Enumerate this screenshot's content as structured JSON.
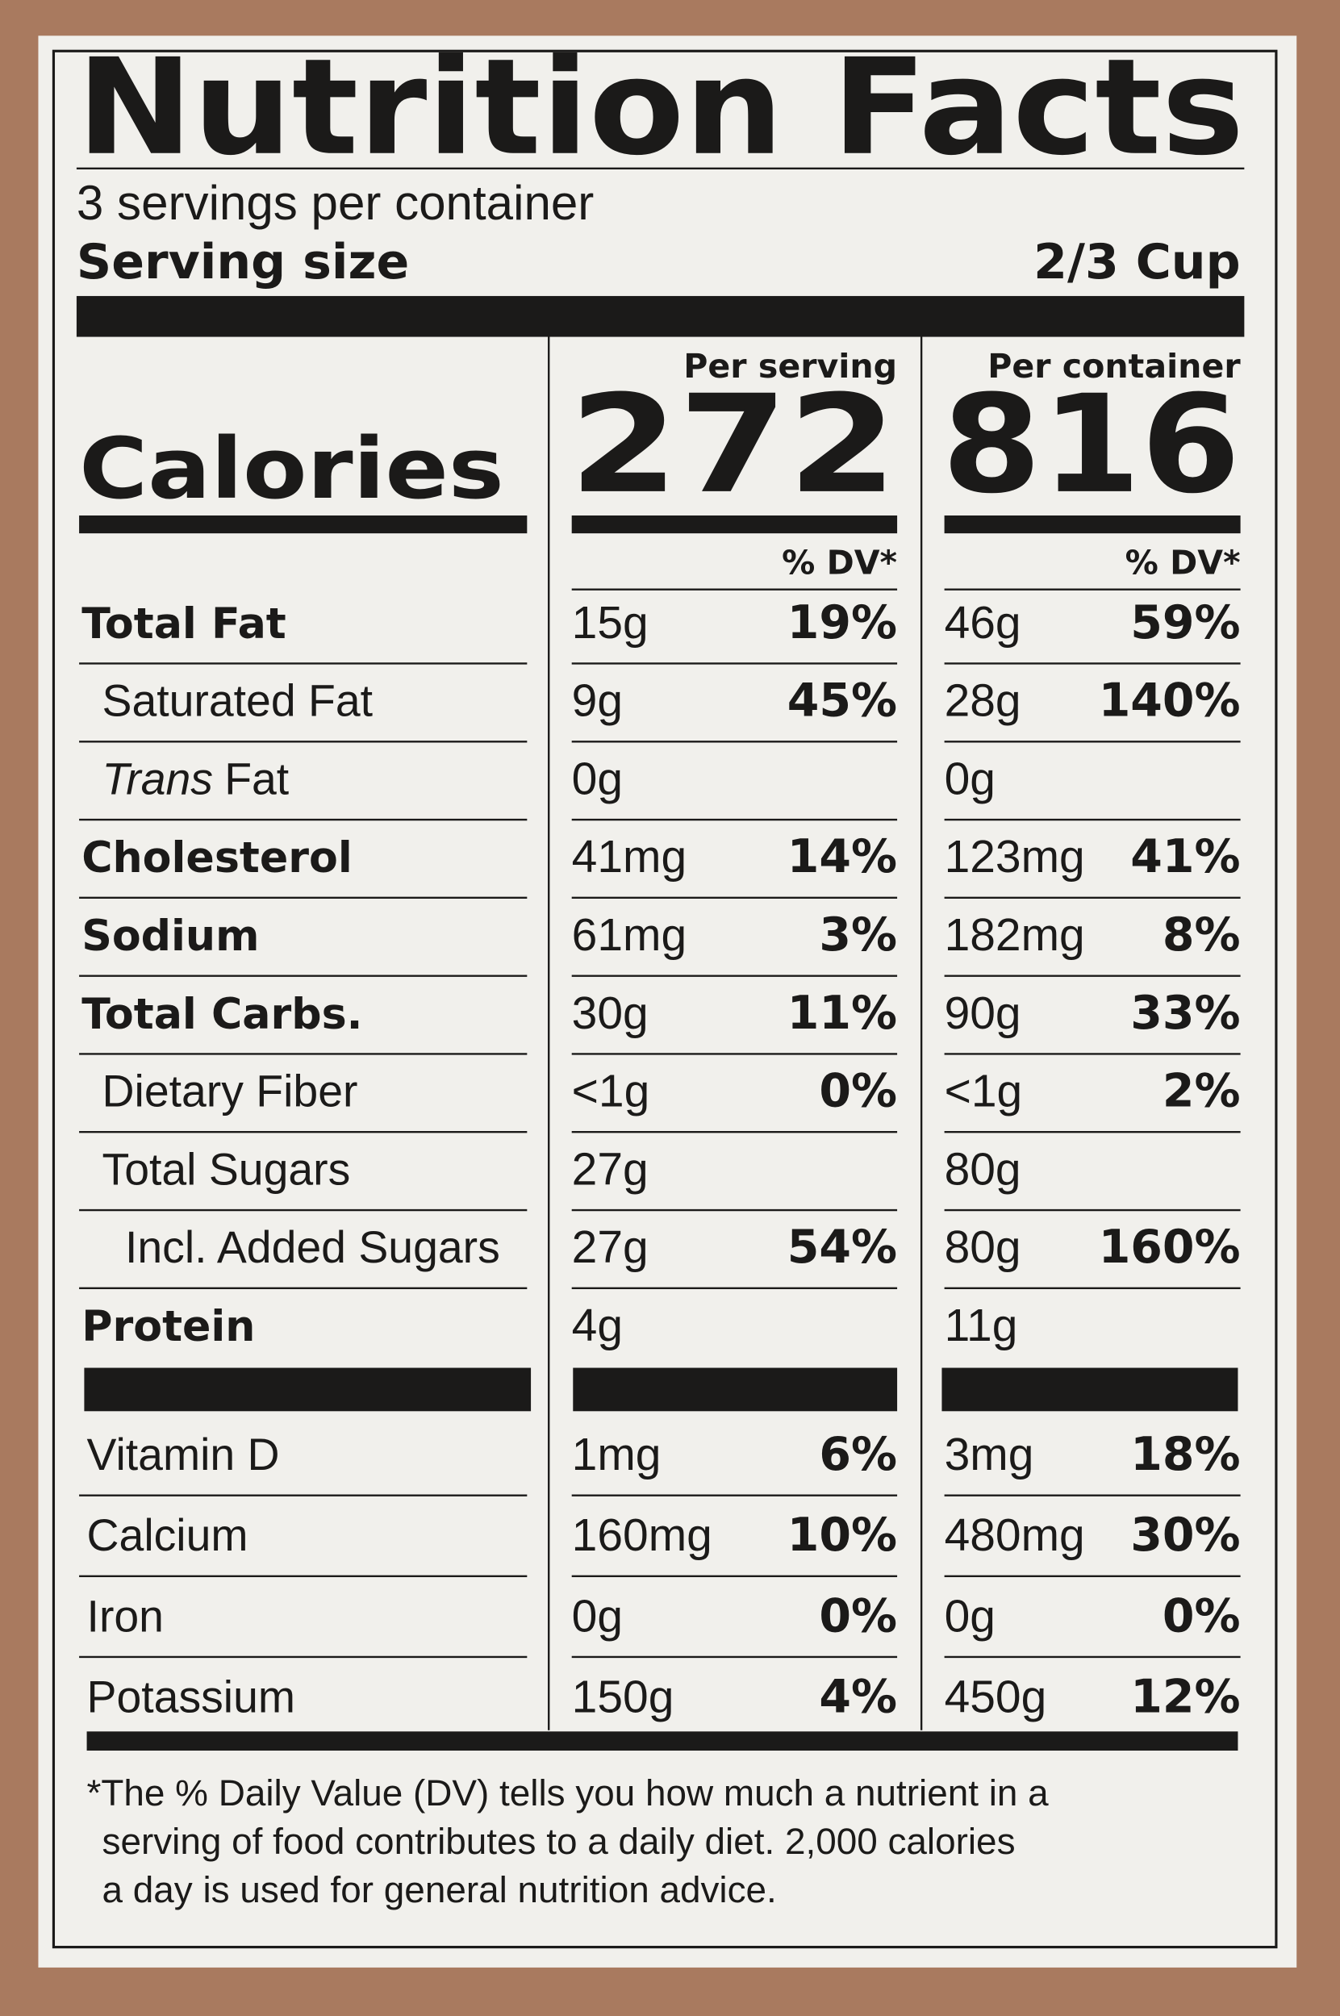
{
  "title": "Nutrition Facts",
  "servings": "3 servings per container",
  "serving_size": {
    "label": "Serving size",
    "value": "2/3 Cup"
  },
  "calories_label": "Calories",
  "columns": [
    {
      "header": "Per serving",
      "calories": "272",
      "dv_header": "% DV*"
    },
    {
      "header": "Per container",
      "calories": "816",
      "dv_header": "% DV*"
    }
  ],
  "nutrients": [
    {
      "name": "Total Fat",
      "bold": true,
      "indent": 0,
      "values": [
        {
          "amount": "15g",
          "dv": "19%"
        },
        {
          "amount": "46g",
          "dv": "59%"
        }
      ]
    },
    {
      "name": "Saturated Fat",
      "indent": 1,
      "values": [
        {
          "amount": "9g",
          "dv": "45%"
        },
        {
          "amount": "28g",
          "dv": "140%"
        }
      ]
    },
    {
      "name_italic": "Trans",
      "name": "Fat",
      "indent": 1,
      "values": [
        {
          "amount": "0g"
        },
        {
          "amount": "0g"
        }
      ]
    },
    {
      "name": "Cholesterol",
      "bold": true,
      "indent": 0,
      "values": [
        {
          "amount": "41mg",
          "dv": "14%"
        },
        {
          "amount": "123mg",
          "dv": "41%"
        }
      ]
    },
    {
      "name": "Sodium",
      "bold": true,
      "indent": 0,
      "values": [
        {
          "amount": "61mg",
          "dv": "3%"
        },
        {
          "amount": "182mg",
          "dv": "8%"
        }
      ]
    },
    {
      "name": "Total Carbs.",
      "bold": true,
      "indent": 0,
      "values": [
        {
          "amount": "30g",
          "dv": "11%"
        },
        {
          "amount": "90g",
          "dv": "33%"
        }
      ]
    },
    {
      "name": "Dietary Fiber",
      "indent": 1,
      "values": [
        {
          "amount": "<1g",
          "dv": "0%"
        },
        {
          "amount": "<1g",
          "dv": "2%"
        }
      ]
    },
    {
      "name": "Total Sugars",
      "indent": 1,
      "values": [
        {
          "amount": "27g"
        },
        {
          "amount": "80g"
        }
      ]
    },
    {
      "name": "Incl. Added Sugars",
      "indent": 2,
      "values": [
        {
          "amount": "27g",
          "dv": "54%"
        },
        {
          "amount": "80g",
          "dv": "160%"
        }
      ]
    },
    {
      "name": "Protein",
      "bold": true,
      "indent": 0,
      "values": [
        {
          "amount": "4g"
        },
        {
          "amount": "11g"
        }
      ]
    }
  ],
  "vitamins": [
    {
      "name": "Vitamin D",
      "values": [
        {
          "amount": "1mg",
          "dv": "6%"
        },
        {
          "amount": "3mg",
          "dv": "18%"
        }
      ]
    },
    {
      "name": "Calcium",
      "values": [
        {
          "amount": "160mg",
          "dv": "10%"
        },
        {
          "amount": "480mg",
          "dv": "30%"
        }
      ]
    },
    {
      "name": "Iron",
      "values": [
        {
          "amount": "0g",
          "dv": "0%"
        },
        {
          "amount": "0g",
          "dv": "0%"
        }
      ]
    },
    {
      "name": "Potassium",
      "values": [
        {
          "amount": "150g",
          "dv": "4%"
        },
        {
          "amount": "450g",
          "dv": "12%"
        }
      ]
    }
  ],
  "footnote": [
    "*The % Daily Value (DV) tells you how much a nutrient in a",
    "serving of food contributes to a daily diet. 2,000 calories",
    "a day is used for general nutrition advice."
  ]
}
